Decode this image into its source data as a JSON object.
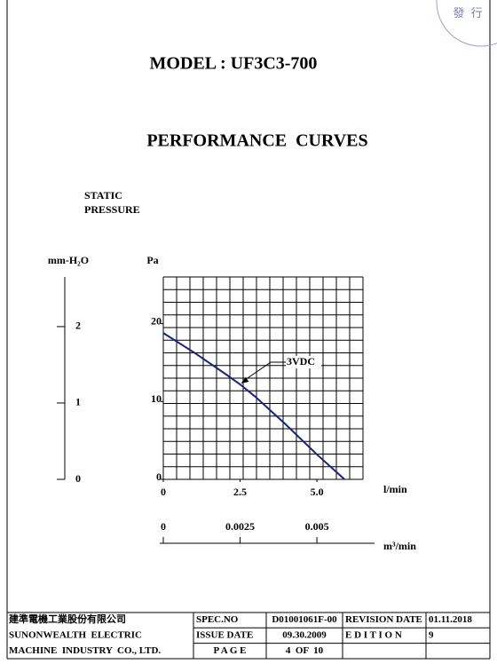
{
  "stamp": {
    "text": "發 行"
  },
  "header": {
    "model": "MODEL : UF3C3-700",
    "title": "PERFORMANCE  CURVES"
  },
  "chart_data": {
    "type": "line",
    "y_label": [
      "STATIC",
      "PRESSURE"
    ],
    "y_unit": "Pa",
    "y2_unit": "mm-H₂O",
    "x_unit": "l/min",
    "x2_unit": "m³/min",
    "x": [
      0,
      1,
      2,
      2.5,
      3,
      4,
      5,
      5.9
    ],
    "series": [
      {
        "name": "3VDC",
        "color": "#1a237e",
        "values": [
          18.8,
          16.3,
          13.6,
          12.2,
          10.6,
          7.0,
          3.2,
          0
        ]
      }
    ],
    "xlim": [
      0,
      6.5
    ],
    "xticks": [
      0,
      2.5,
      {
        "value": 5,
        "label": "5.0"
      }
    ],
    "ylim": [
      0,
      26
    ],
    "yticks": [
      0,
      10,
      20
    ],
    "y2lim": [
      0,
      2.65
    ],
    "y2ticks": [
      0,
      1,
      2
    ],
    "x2lim": [
      0,
      0.0065
    ],
    "x2ticks": [
      0,
      0.0025,
      0.005
    ],
    "grid": true
  },
  "footer": {
    "company": [
      "建準電機工業股份有限公司",
      "SUNONWEALTH  ELECTRIC",
      "MACHINE  INDUSTRY  CO., LTD."
    ],
    "rows": [
      [
        "SPEC.NO",
        "D01001061F-00",
        "REVISION DATE",
        "01.11.2018"
      ],
      [
        "ISSUE DATE",
        "09.30.2009",
        "E D I T I O N",
        "9"
      ],
      [
        "P A G E",
        "4  OF  10"
      ]
    ]
  }
}
